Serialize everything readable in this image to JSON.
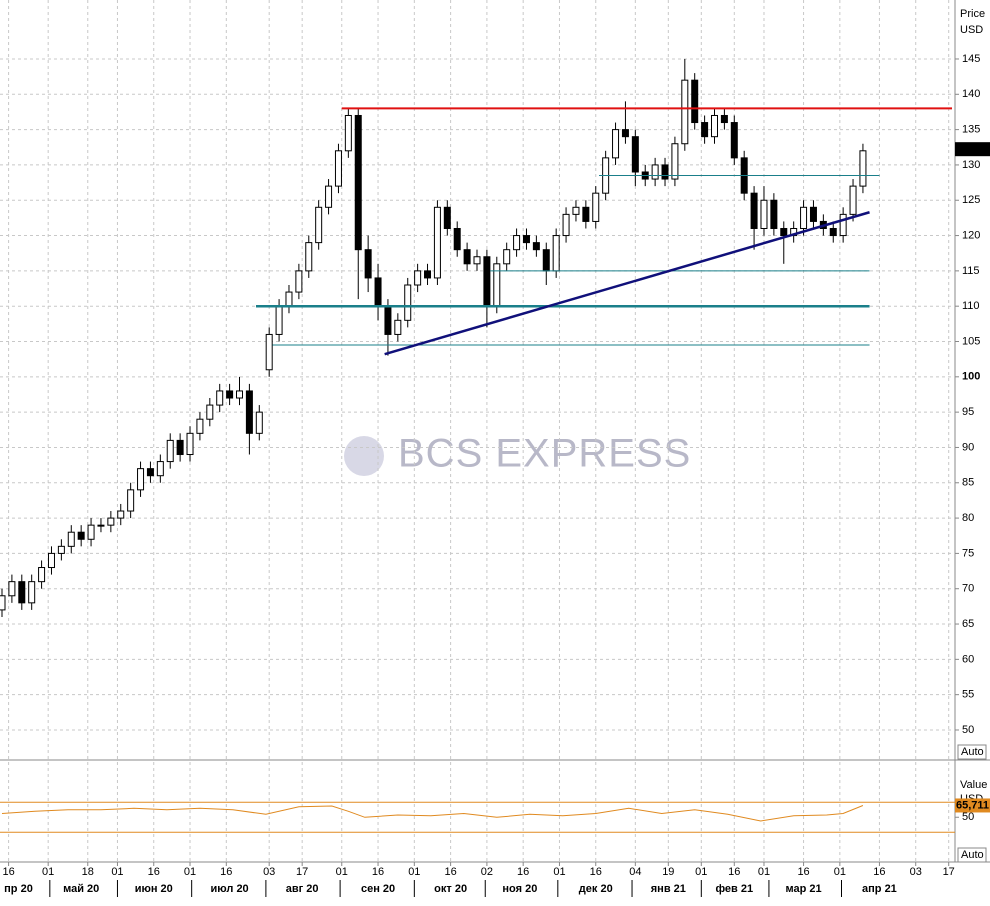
{
  "chart_data": {
    "type": "candlestick",
    "price_header": "Price",
    "price_unit": "USD",
    "osc_header": "Value",
    "osc_unit": "USD",
    "auto_label": "Auto",
    "auto_label_osc": "Auto",
    "watermark": "BCS EXPRESS",
    "x": [
      0,
      3,
      6,
      9,
      12,
      15,
      18,
      21,
      24,
      27,
      30,
      33,
      36,
      39,
      42,
      45,
      48,
      51,
      54,
      57,
      60,
      63,
      66,
      69,
      72,
      75,
      78,
      81,
      84,
      87,
      90,
      93,
      96,
      99,
      102,
      105,
      108,
      111,
      114,
      117,
      120,
      123,
      126,
      129,
      132,
      135,
      138,
      141,
      144,
      147,
      150,
      153,
      156,
      159,
      162,
      165,
      168,
      171,
      174,
      177,
      180,
      183,
      186,
      189,
      192,
      195,
      198,
      201,
      204,
      207,
      210,
      213,
      216,
      219,
      222,
      225,
      228,
      231,
      234,
      237,
      240,
      243,
      246,
      249,
      252,
      255,
      258,
      261
    ],
    "open": [
      67,
      69,
      71,
      68,
      71,
      73,
      75,
      76,
      78,
      77,
      79,
      79,
      80,
      81,
      84,
      87,
      86,
      88,
      91,
      89,
      92,
      94,
      96,
      98,
      97,
      98,
      92,
      101,
      106,
      110,
      112,
      115,
      119,
      124,
      127,
      132,
      137,
      118,
      114,
      110,
      106,
      108,
      113,
      115,
      114,
      124,
      121,
      118,
      116,
      117,
      110,
      116,
      118,
      120,
      119,
      118,
      115,
      120,
      123,
      124,
      122,
      126,
      131,
      135,
      134,
      129,
      128,
      130,
      128,
      133,
      142,
      136,
      134,
      137,
      136,
      131,
      126,
      121,
      125,
      121,
      120,
      121,
      124,
      122,
      121,
      120,
      123,
      127
    ],
    "high": [
      70,
      72,
      72,
      72,
      74,
      76,
      77,
      79,
      79,
      80,
      80,
      81,
      82,
      85,
      88,
      88,
      89,
      92,
      92,
      93,
      95,
      97,
      99,
      99,
      100,
      99,
      96,
      107,
      111,
      113,
      116,
      120,
      125,
      128,
      133,
      138,
      138,
      120,
      116,
      111,
      109,
      114,
      116,
      116,
      125,
      125,
      122,
      119,
      118,
      118,
      117,
      119,
      121,
      121,
      120,
      119,
      121,
      124,
      125,
      125,
      127,
      132,
      136,
      139,
      135,
      130,
      131,
      131,
      134,
      145,
      143,
      137,
      138,
      138,
      137,
      132,
      127,
      127,
      126,
      122,
      122,
      125,
      125,
      123,
      122,
      124,
      128,
      133
    ],
    "low": [
      66,
      68,
      67,
      67,
      70,
      72,
      74,
      75,
      76,
      76,
      78,
      78,
      79,
      80,
      83,
      85,
      85,
      87,
      88,
      88,
      91,
      93,
      95,
      96,
      96,
      89,
      91,
      100,
      105,
      109,
      111,
      114,
      118,
      123,
      126,
      131,
      111,
      112,
      108,
      103,
      105,
      107,
      112,
      113,
      113,
      120,
      117,
      115,
      115,
      107,
      109,
      115,
      117,
      118,
      117,
      113,
      114,
      119,
      122,
      121,
      121,
      125,
      130,
      133,
      127,
      127,
      127,
      127,
      127,
      132,
      135,
      133,
      133,
      135,
      130,
      125,
      118,
      120,
      120,
      116,
      119,
      120,
      121,
      120,
      119,
      119,
      122,
      126
    ],
    "close": [
      69,
      71,
      68,
      71,
      73,
      75,
      76,
      78,
      77,
      79,
      79,
      80,
      81,
      84,
      87,
      86,
      88,
      91,
      89,
      92,
      94,
      96,
      98,
      97,
      98,
      92,
      95,
      106,
      110,
      112,
      115,
      119,
      124,
      127,
      132,
      137,
      118,
      114,
      110,
      106,
      108,
      113,
      115,
      114,
      124,
      121,
      118,
      116,
      117,
      110,
      116,
      118,
      120,
      119,
      118,
      115,
      120,
      123,
      124,
      122,
      126,
      131,
      135,
      134,
      129,
      128,
      130,
      128,
      133,
      142,
      136,
      134,
      137,
      136,
      131,
      126,
      121,
      125,
      121,
      120,
      121,
      124,
      122,
      121,
      120,
      123,
      127,
      132
    ],
    "last_price": {
      "value": 132.229,
      "label": "132,229"
    },
    "xlim": [
      0,
      288
    ],
    "xticks": [
      {
        "value": 2,
        "label": "16"
      },
      {
        "value": 14,
        "label": "01"
      },
      {
        "value": 26,
        "label": "18"
      },
      {
        "value": 35,
        "label": "01"
      },
      {
        "value": 46,
        "label": "16"
      },
      {
        "value": 57,
        "label": "01"
      },
      {
        "value": 68,
        "label": "16"
      },
      {
        "value": 81,
        "label": "03"
      },
      {
        "value": 91,
        "label": "17"
      },
      {
        "value": 103,
        "label": "01"
      },
      {
        "value": 114,
        "label": "16"
      },
      {
        "value": 125,
        "label": "01"
      },
      {
        "value": 136,
        "label": "16"
      },
      {
        "value": 147,
        "label": "02"
      },
      {
        "value": 158,
        "label": "16"
      },
      {
        "value": 169,
        "label": "01"
      },
      {
        "value": 180,
        "label": "16"
      },
      {
        "value": 192,
        "label": "04"
      },
      {
        "value": 202,
        "label": "19"
      },
      {
        "value": 212,
        "label": "01"
      },
      {
        "value": 222,
        "label": "16"
      },
      {
        "value": 231,
        "label": "01"
      },
      {
        "value": 243,
        "label": "16"
      },
      {
        "value": 254,
        "label": "01"
      },
      {
        "value": 266,
        "label": "16"
      },
      {
        "value": 277,
        "label": "03"
      },
      {
        "value": 287,
        "label": "17"
      }
    ],
    "month_labels": [
      {
        "value": 5,
        "label": "пр 20"
      },
      {
        "value": 24,
        "label": "май 20"
      },
      {
        "value": 46,
        "label": "июн 20"
      },
      {
        "value": 69,
        "label": "июл 20"
      },
      {
        "value": 91,
        "label": "авг 20"
      },
      {
        "value": 114,
        "label": "сен 20"
      },
      {
        "value": 136,
        "label": "окт 20"
      },
      {
        "value": 157,
        "label": "ноя 20"
      },
      {
        "value": 180,
        "label": "дек 20"
      },
      {
        "value": 202,
        "label": "янв 21"
      },
      {
        "value": 222,
        "label": "фев 21"
      },
      {
        "value": 243,
        "label": "мар 21"
      },
      {
        "value": 266,
        "label": "апр 21"
      }
    ],
    "ylim": [
      45.75,
      153.35
    ],
    "yticks": [
      50,
      55,
      60,
      65,
      70,
      75,
      80,
      85,
      90,
      95,
      100,
      105,
      110,
      115,
      120,
      125,
      130,
      135,
      140,
      145
    ],
    "major_ytick": 100,
    "grid": true,
    "lines": [
      {
        "x": [
          103,
          288
        ],
        "y": [
          138,
          138
        ],
        "color": "#e01010",
        "width": 2
      },
      {
        "x": [
          181,
          266
        ],
        "y": [
          128.5,
          128.5
        ],
        "color": "#1a7f8a",
        "width": 1
      },
      {
        "x": [
          148,
          263
        ],
        "y": [
          115,
          115
        ],
        "color": "#1a7f8a",
        "width": 1
      },
      {
        "x": [
          77,
          263
        ],
        "y": [
          110,
          110
        ],
        "color": "#1a7f8a",
        "width": 2.5
      },
      {
        "x": [
          82,
          263
        ],
        "y": [
          104.5,
          104.5
        ],
        "color": "#1a7f8a",
        "width": 1
      },
      {
        "x": [
          116,
          263
        ],
        "y": [
          103.2,
          123.3
        ],
        "color": "#10107a",
        "width": 2.5
      }
    ],
    "oscillator": {
      "color": "#e08a20",
      "x": [
        0,
        10,
        20,
        30,
        40,
        50,
        60,
        70,
        80,
        90,
        100,
        105,
        110,
        120,
        130,
        140,
        150,
        160,
        170,
        180,
        190,
        200,
        210,
        220,
        230,
        240,
        250,
        255,
        261
      ],
      "values": [
        55,
        58,
        60,
        60,
        62,
        60,
        62,
        60,
        54,
        64,
        65,
        58,
        50,
        53,
        52,
        55,
        50,
        54,
        52,
        55,
        62,
        55,
        60,
        54,
        45,
        52,
        53,
        55,
        65.711
      ],
      "value_labels": [
        null,
        null,
        null,
        null,
        null,
        null,
        null,
        null,
        null,
        null,
        null,
        null,
        null,
        null,
        null,
        null,
        null,
        null,
        null,
        null,
        null,
        null,
        null,
        null,
        null,
        null,
        null,
        null,
        "65,711"
      ],
      "ylim": [
        -7,
        113
      ],
      "yticks": [
        50
      ],
      "levels": [
        70,
        30
      ]
    }
  }
}
